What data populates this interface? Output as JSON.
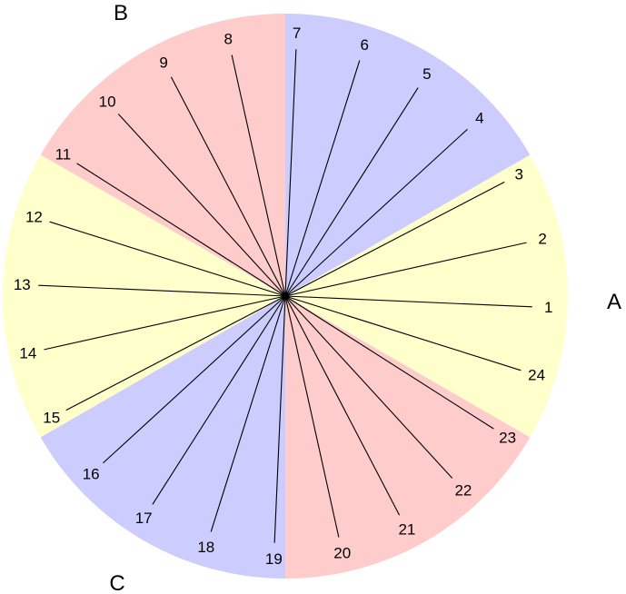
{
  "sectors": [
    {
      "name": "yellow-right",
      "color": "#ffffcc"
    },
    {
      "name": "blue-top-right",
      "color": "#ccccff"
    },
    {
      "name": "red-top-left",
      "color": "#ffcccc"
    },
    {
      "name": "yellow-left",
      "color": "#ffffcc"
    },
    {
      "name": "blue-bottom-left",
      "color": "#ccccff"
    },
    {
      "name": "red-bottom-right",
      "color": "#ffcccc"
    }
  ],
  "region_labels": {
    "a": "A",
    "b": "B",
    "c": "C"
  },
  "spokes": [
    "1",
    "2",
    "3",
    "4",
    "5",
    "6",
    "7",
    "8",
    "9",
    "10",
    "11",
    "12",
    "13",
    "14",
    "15",
    "16",
    "17",
    "18",
    "19",
    "20",
    "21",
    "22",
    "23",
    "24"
  ]
}
